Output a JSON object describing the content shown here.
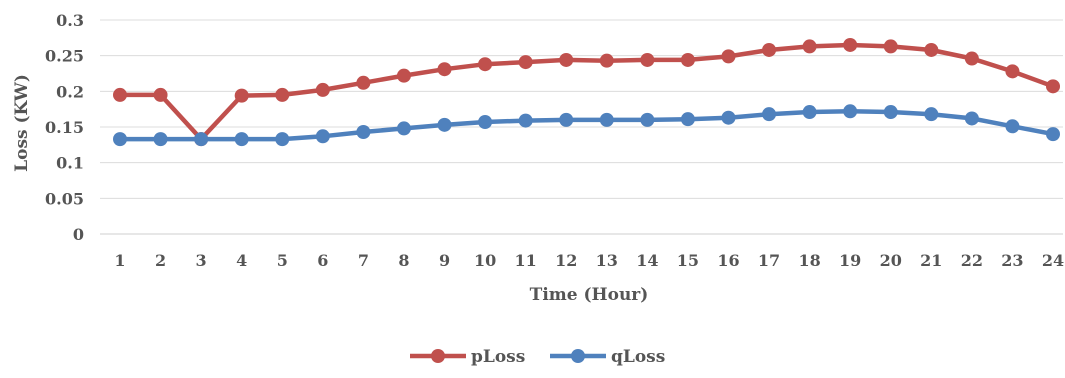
{
  "chart_data": {
    "type": "line",
    "title": "",
    "xlabel": "Time (Hour)",
    "ylabel": "Loss (KW)",
    "x": [
      1,
      2,
      3,
      4,
      5,
      6,
      7,
      8,
      9,
      10,
      11,
      12,
      13,
      14,
      15,
      16,
      17,
      18,
      19,
      20,
      21,
      22,
      23,
      24
    ],
    "ylim": [
      0,
      0.3
    ],
    "yticks": [
      "0",
      "0.05",
      "0.1",
      "0.15",
      "0.2",
      "0.25",
      "0.3"
    ],
    "grid": "horizontal",
    "legend_position": "bottom",
    "series": [
      {
        "name": "pLoss",
        "color": "#C0504D",
        "values": [
          0.195,
          0.195,
          0.133,
          0.194,
          0.195,
          0.202,
          0.212,
          0.222,
          0.231,
          0.238,
          0.241,
          0.244,
          0.243,
          0.244,
          0.244,
          0.249,
          0.258,
          0.263,
          0.265,
          0.263,
          0.258,
          0.246,
          0.228,
          0.207
        ]
      },
      {
        "name": "qLoss",
        "color": "#4F81BD",
        "values": [
          0.133,
          0.133,
          0.133,
          0.133,
          0.133,
          0.137,
          0.143,
          0.148,
          0.153,
          0.157,
          0.159,
          0.16,
          0.16,
          0.16,
          0.161,
          0.163,
          0.168,
          0.171,
          0.172,
          0.171,
          0.168,
          0.162,
          0.151,
          0.14
        ]
      }
    ]
  }
}
